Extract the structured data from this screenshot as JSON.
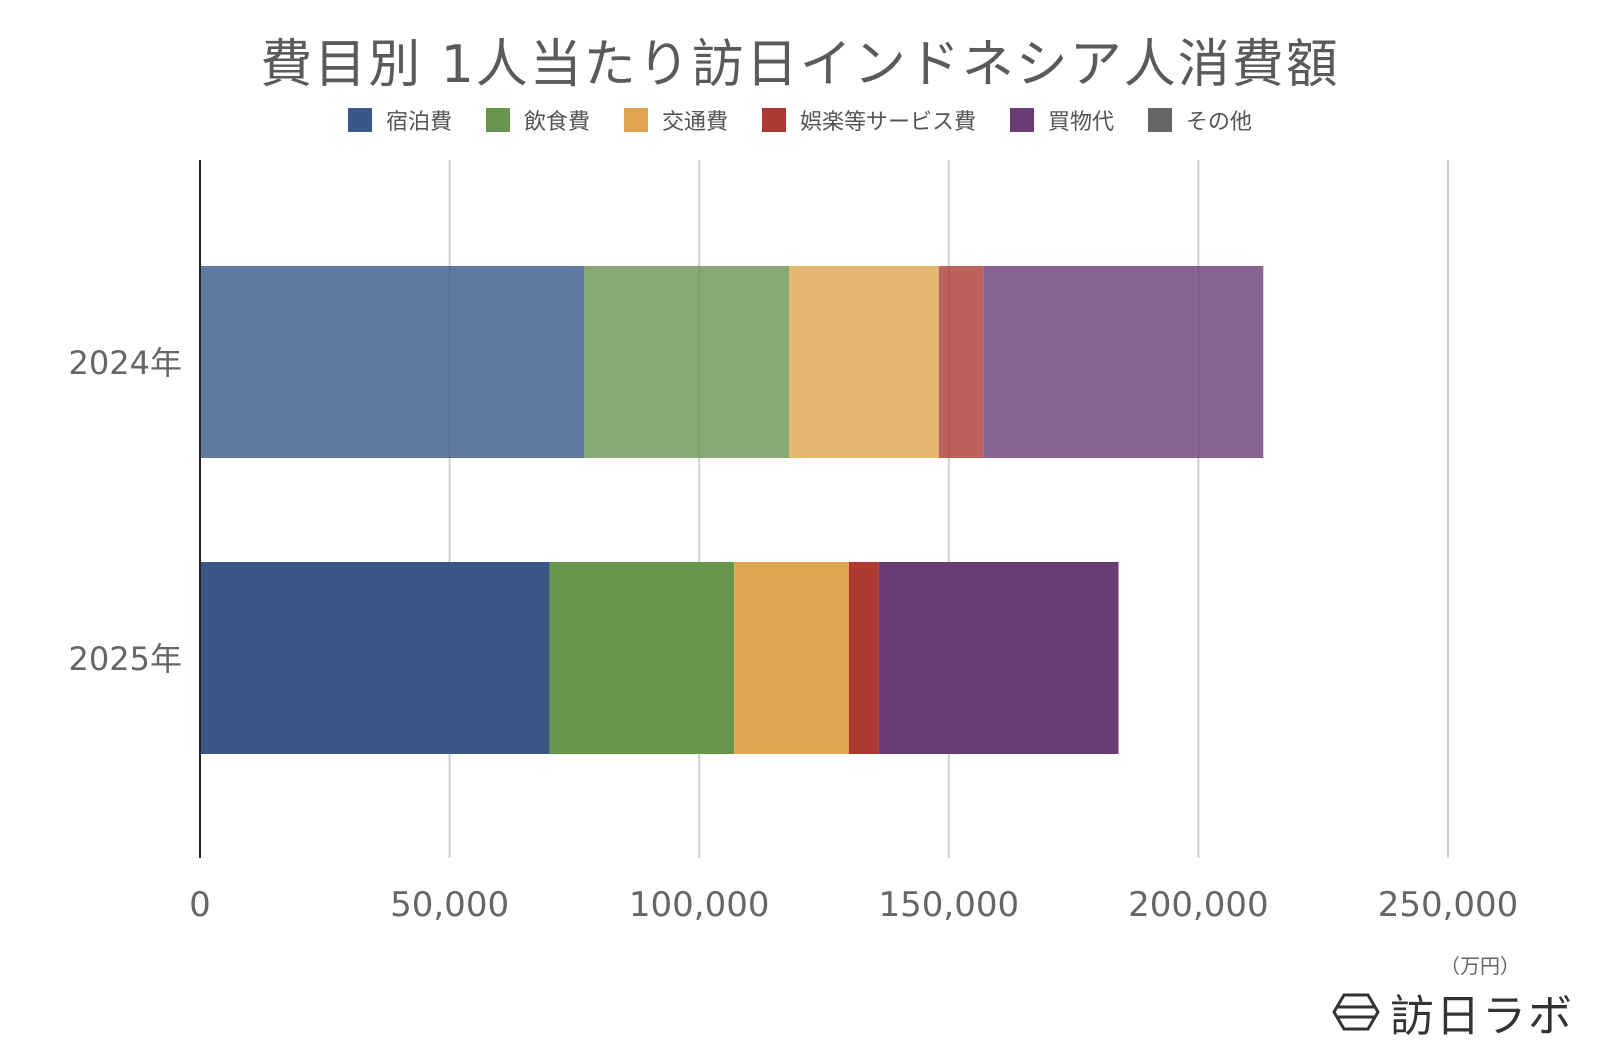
{
  "title": "費目別 1人当たり訪日インドネシア人消費額",
  "unit_label": "（万円）",
  "logo_text": "訪日ラボ",
  "chart_data": {
    "type": "bar",
    "orientation": "horizontal",
    "stacked": true,
    "categories": [
      "2024年",
      "2025年"
    ],
    "series": [
      {
        "name": "宿泊費",
        "color": "#395887",
        "values": [
          77000,
          70000
        ]
      },
      {
        "name": "飲食費",
        "color": "#6a954f",
        "values": [
          41000,
          37000
        ]
      },
      {
        "name": "交通費",
        "color": "#e0a54f",
        "values": [
          30000,
          23000
        ]
      },
      {
        "name": "娯楽等サービス費",
        "color": "#ac3a33",
        "values": [
          9000,
          6000
        ]
      },
      {
        "name": "買物代",
        "color": "#693d74",
        "values": [
          56000,
          48000
        ]
      },
      {
        "name": "その他",
        "color": "#666666",
        "values": [
          0,
          0
        ]
      }
    ],
    "xlim": [
      0,
      250000
    ],
    "xticks": [
      "0",
      "50,000",
      "100,000",
      "150,000",
      "200,000",
      "250,000"
    ],
    "xtick_values": [
      0,
      50000,
      100000,
      150000,
      200000,
      250000
    ],
    "grid": true,
    "legend_position": "top",
    "faded_categories": [
      "2024年"
    ]
  }
}
